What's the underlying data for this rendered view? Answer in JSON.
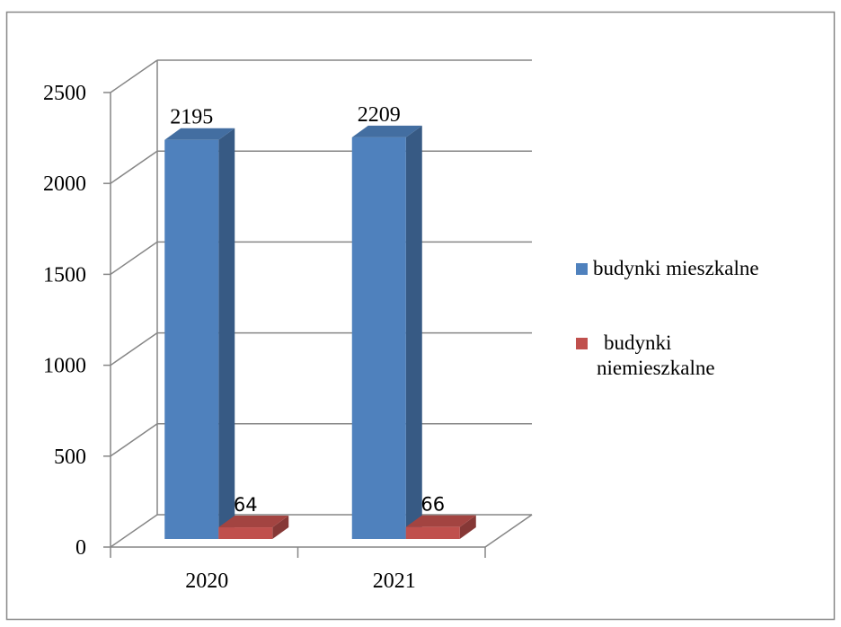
{
  "chart_data": {
    "type": "bar3d",
    "categories": [
      "2020",
      "2021"
    ],
    "series": [
      {
        "name": "budynki mieszkalne",
        "color": "#4f81bd",
        "values": [
          2195,
          2209
        ]
      },
      {
        "name": "budynki niemieszkalne",
        "color": "#c0504d",
        "values": [
          64,
          66
        ]
      }
    ],
    "ylim": [
      0,
      2500
    ],
    "yticks": [
      0,
      500,
      1000,
      1500,
      2000,
      2500
    ],
    "grid": true,
    "legend": "right"
  }
}
